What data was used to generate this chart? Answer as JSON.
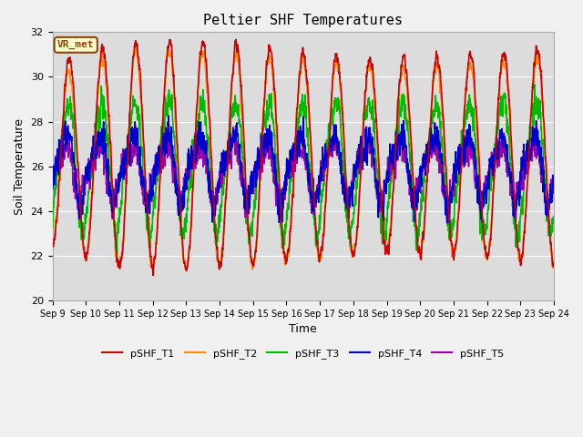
{
  "title": "Peltier SHF Temperatures",
  "xlabel": "Time",
  "ylabel": "Soil Temperature",
  "ylim": [
    20,
    32
  ],
  "xlim": [
    0,
    15
  ],
  "x_tick_labels": [
    "Sep 9",
    "Sep 10",
    "Sep 11",
    "Sep 12",
    "Sep 13",
    "Sep 14",
    "Sep 15",
    "Sep 16",
    "Sep 17",
    "Sep 18",
    "Sep 19",
    "Sep 20",
    "Sep 21",
    "Sep 22",
    "Sep 23",
    "Sep 24"
  ],
  "y_ticks": [
    20,
    22,
    24,
    26,
    28,
    30,
    32
  ],
  "plot_bg": "#dcdcdc",
  "fig_bg": "#f0f0f0",
  "annotation_text": "VR_met",
  "annotation_box_color": "#ffffcc",
  "annotation_border_color": "#8b4513",
  "series_colors": {
    "pSHF_T1": "#cc0000",
    "pSHF_T2": "#ff8c00",
    "pSHF_T3": "#00bb00",
    "pSHF_T4": "#0000cc",
    "pSHF_T5": "#9900aa"
  },
  "lw": 1.2
}
